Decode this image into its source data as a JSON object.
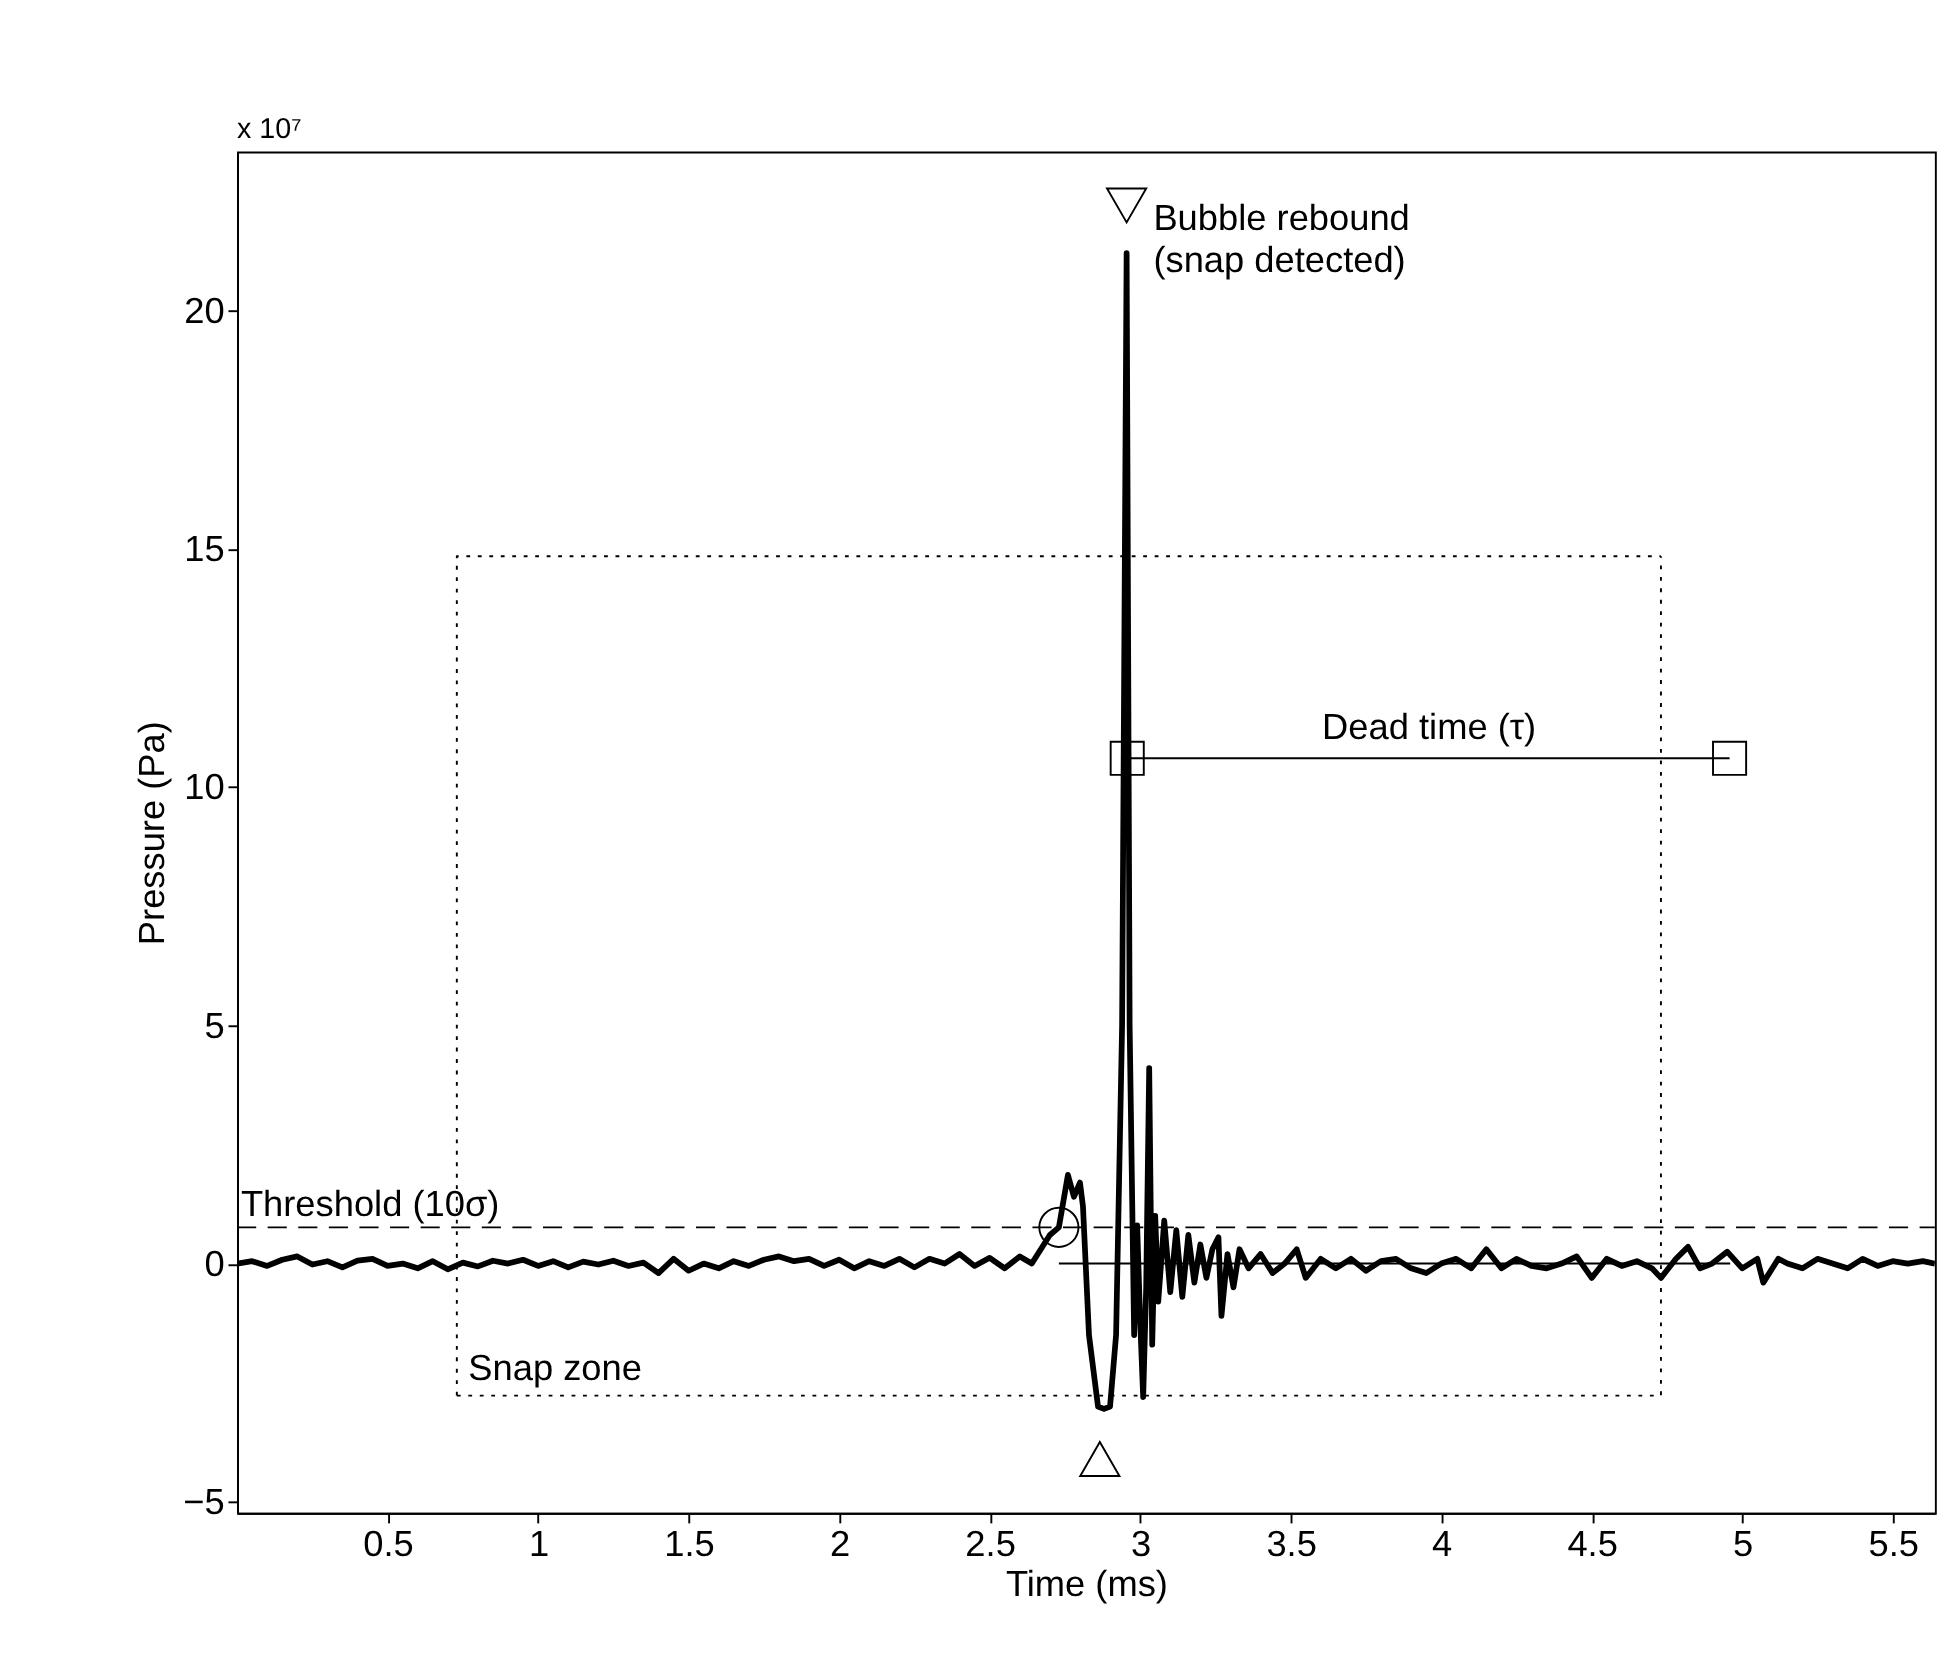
{
  "chart_data": {
    "type": "line",
    "xlabel": "Time (ms)",
    "ylabel": "Pressure (Pa)",
    "xlim": [
      0,
      5.64
    ],
    "ylim": [
      -5.23,
      23.33
    ],
    "xticks": [
      0.5,
      {
        "value": 1,
        "label": "1"
      },
      1.5,
      {
        "value": 2,
        "label": "2"
      },
      2.5,
      {
        "value": 3,
        "label": "3"
      },
      3.5,
      {
        "value": 4,
        "label": "4"
      },
      4.5,
      {
        "value": 5,
        "label": "5"
      },
      5.5
    ],
    "yticks": [
      {
        "value": -5,
        "label": "−5"
      },
      0,
      5,
      10,
      15,
      20
    ],
    "grid": false,
    "annotations": [
      "x 10⁷",
      {
        "text": "Bubble rebound\n(snap detected)",
        "x": 2.955,
        "y": 22.2
      },
      {
        "text": "Dead time (τ)",
        "x": 3.96,
        "y": 10.6
      },
      {
        "text": "Snap zone",
        "x": 0.73,
        "y": -2.77
      }
    ],
    "ref_lines": [
      {
        "axis": "y",
        "value": 0.76,
        "label": "Threshold (10σ)",
        "line_style": "dashed",
        "color": "#000000"
      }
    ],
    "series": [
      {
        "color": "#000000",
        "line_style": "solid",
        "marker": "none",
        "x": [
          0,
          0.05,
          0.1,
          0.15,
          0.2,
          0.25,
          0.3,
          0.35,
          0.4,
          0.45,
          0.5,
          0.55,
          0.6,
          0.65,
          0.7,
          0.75,
          0.8,
          0.85,
          0.9,
          0.95,
          1.0,
          1.05,
          1.1,
          1.15,
          1.2,
          1.25,
          1.3,
          1.35,
          1.4,
          1.45,
          1.5,
          1.55,
          1.6,
          1.65,
          1.7,
          1.75,
          1.8,
          1.85,
          1.9,
          1.95,
          2.0,
          2.05,
          2.1,
          2.15,
          2.2,
          2.25,
          2.3,
          2.35,
          2.4,
          2.45,
          2.5,
          2.55,
          2.6,
          2.64,
          2.67,
          2.7,
          2.73,
          2.76,
          2.78,
          2.8,
          2.81,
          2.83,
          2.86,
          2.88,
          2.9,
          2.92,
          2.94,
          2.955,
          2.965,
          2.98,
          2.99,
          3.0,
          3.01,
          3.02,
          3.03,
          3.04,
          3.05,
          3.06,
          3.08,
          3.1,
          3.12,
          3.14,
          3.16,
          3.18,
          3.2,
          3.22,
          3.24,
          3.26,
          3.27,
          3.29,
          3.31,
          3.33,
          3.36,
          3.4,
          3.44,
          3.48,
          3.52,
          3.55,
          3.6,
          3.65,
          3.7,
          3.75,
          3.8,
          3.85,
          3.9,
          3.95,
          4.0,
          4.05,
          4.1,
          4.15,
          4.2,
          4.25,
          4.3,
          4.35,
          4.4,
          4.45,
          4.5,
          4.55,
          4.6,
          4.65,
          4.7,
          4.73,
          4.78,
          4.82,
          4.86,
          4.9,
          4.95,
          5.0,
          5.05,
          5.07,
          5.12,
          5.15,
          5.2,
          5.25,
          5.3,
          5.35,
          5.4,
          5.45,
          5.5,
          5.55,
          5.6,
          5.64
        ],
        "values": [
          0.0,
          0.05,
          -0.05,
          0.08,
          0.15,
          -0.02,
          0.05,
          -0.08,
          0.06,
          0.1,
          -0.05,
          0.0,
          -0.1,
          0.05,
          -0.12,
          0.02,
          -0.06,
          0.06,
          0.0,
          0.08,
          -0.05,
          0.05,
          -0.08,
          0.04,
          -0.02,
          0.06,
          -0.05,
          0.02,
          -0.2,
          0.1,
          -0.15,
          0.0,
          -0.1,
          0.05,
          -0.05,
          0.08,
          0.15,
          0.05,
          0.1,
          -0.05,
          0.08,
          -0.1,
          0.05,
          -0.05,
          0.1,
          -0.08,
          0.1,
          0.0,
          0.2,
          -0.05,
          0.12,
          -0.1,
          0.15,
          0.0,
          0.3,
          0.6,
          0.76,
          1.86,
          1.4,
          1.7,
          1.2,
          -1.5,
          -3.0,
          -3.05,
          -3.0,
          -1.5,
          5,
          21.2,
          5,
          -1.5,
          0.8,
          -1.2,
          -2.8,
          -0.5,
          4.1,
          -1.7,
          1.0,
          -0.8,
          0.9,
          -0.6,
          0.7,
          -0.7,
          0.6,
          -0.4,
          0.4,
          -0.3,
          0.3,
          0.55,
          -1.1,
          0.2,
          -0.5,
          0.3,
          -0.1,
          0.2,
          -0.2,
          0.0,
          0.3,
          -0.3,
          0.1,
          -0.1,
          0.1,
          -0.15,
          0.05,
          0.1,
          -0.1,
          -0.2,
          0.0,
          0.1,
          -0.1,
          0.3,
          -0.1,
          0.1,
          -0.05,
          -0.1,
          0.0,
          0.15,
          -0.3,
          0.1,
          -0.05,
          0.05,
          -0.1,
          -0.3,
          0.1,
          0.35,
          -0.1,
          0.0,
          0.25,
          -0.1,
          0.1,
          -0.4,
          0.1,
          0.0,
          -0.1,
          0.1,
          0.0,
          -0.1,
          0.1,
          -0.05,
          0.05,
          0.0,
          0.05,
          0.0
        ]
      },
      {
        "color": "#000000",
        "line_style": "solid",
        "marker": "none",
        "x": [
          2.73,
          4.96
        ],
        "values": [
          0,
          0
        ]
      },
      {
        "color": "#000000",
        "line_style": "dotted",
        "marker": "none",
        "x": [
          0.73,
          0.73,
          4.73
        ],
        "values": [
          -2.77,
          14.84,
          14.84
        ]
      },
      {
        "color": "#000000",
        "line_style": "dotted",
        "marker": "none",
        "x": [
          0.73,
          4.73,
          4.73
        ],
        "values": [
          -2.77,
          -2.77,
          14.84
        ]
      },
      {
        "color": "#000000",
        "line_style": "solid",
        "marker": "square",
        "x": [
          2.957,
          4.958
        ],
        "values": [
          10.6,
          10.6
        ]
      },
      {
        "type": "scatter",
        "color": "#000000",
        "marker": "circle",
        "x": [
          2.73
        ],
        "values": [
          0.76
        ]
      },
      {
        "type": "scatter",
        "color": "#000000",
        "marker": "triangle-down",
        "x": [
          2.955
        ],
        "values": [
          22.2
        ]
      },
      {
        "type": "scatter",
        "color": "#000000",
        "marker": "triangle",
        "x": [
          2.866
        ],
        "values": [
          -4.1
        ]
      }
    ]
  }
}
